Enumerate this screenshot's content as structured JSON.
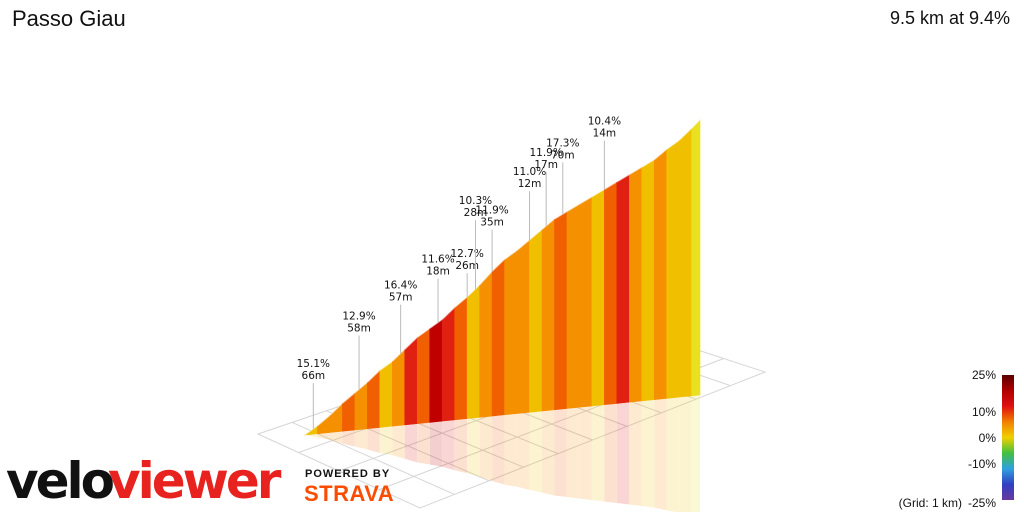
{
  "header": {
    "title": "Passo Giau",
    "summary": "9.5 km at 9.4%"
  },
  "branding": {
    "logo_part1": "velo",
    "logo_part2": "viewer",
    "powered_by": "POWERED BY",
    "strava": "STRAVA",
    "logo_color": "#e8231f"
  },
  "chart_data": {
    "type": "area",
    "distance_km": 9.5,
    "avg_gradient_pct": 9.4,
    "grid_note": "(Grid: 1 km)",
    "profile": {
      "x_km": [
        0,
        0.3,
        0.6,
        0.9,
        1.2,
        1.5,
        1.8,
        2.1,
        2.4,
        2.7,
        3.0,
        3.3,
        3.6,
        3.9,
        4.2,
        4.5,
        4.8,
        5.1,
        5.4,
        5.7,
        6.0,
        6.3,
        6.6,
        6.9,
        7.2,
        7.5,
        7.8,
        8.1,
        8.4,
        8.7,
        9.0,
        9.3,
        9.5
      ],
      "elevation_m": [
        0,
        25,
        55,
        90,
        120,
        150,
        185,
        210,
        245,
        280,
        305,
        330,
        365,
        395,
        430,
        470,
        505,
        530,
        560,
        590,
        620,
        640,
        660,
        680,
        700,
        720,
        740,
        760,
        780,
        810,
        835,
        870,
        895
      ],
      "gradient_pct": [
        8,
        10,
        11,
        12,
        11,
        12,
        9,
        10,
        13,
        12,
        16,
        14,
        12,
        9,
        11,
        12,
        10,
        11,
        9,
        10,
        12,
        11,
        10,
        8,
        12,
        14,
        11,
        9,
        10,
        8,
        9,
        7,
        6
      ]
    },
    "annotations": [
      {
        "gradient": "15.1%",
        "length": "66m"
      },
      {
        "gradient": "12.9%",
        "length": "58m"
      },
      {
        "gradient": "16.4%",
        "length": "57m"
      },
      {
        "gradient": "11.6%",
        "length": "18m"
      },
      {
        "gradient": "12.7%",
        "length": "26m"
      },
      {
        "gradient": "10.3%",
        "length": "28m"
      },
      {
        "gradient": "11.9%",
        "length": "35m"
      },
      {
        "gradient": "11.0%",
        "length": "12m"
      },
      {
        "gradient": "11.9%",
        "length": "17m"
      },
      {
        "gradient": "17.3%",
        "length": "70m"
      },
      {
        "gradient": "10.4%",
        "length": "14m"
      }
    ],
    "legend": {
      "ticks": [
        "25%",
        "10%",
        "0%",
        "-10%",
        "-25%"
      ],
      "stops": [
        "#5a0000",
        "#b00000",
        "#e01010",
        "#f08000",
        "#f0d000",
        "#40c040",
        "#30a0e0",
        "#3040c0",
        "#6a3aa0"
      ]
    }
  }
}
